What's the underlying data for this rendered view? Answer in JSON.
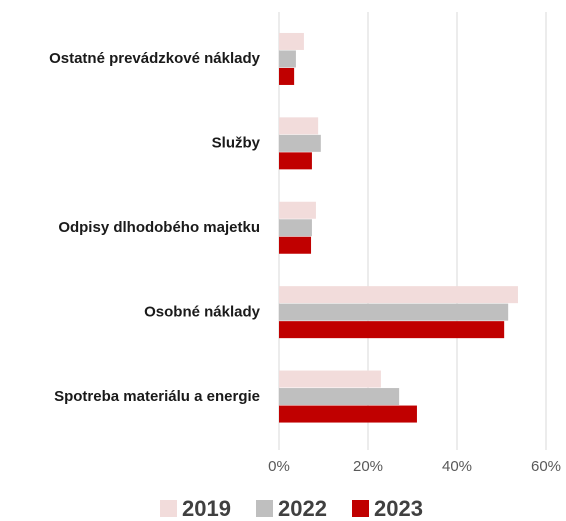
{
  "chart_data": {
    "type": "barh",
    "categories": [
      "Ostatné prevádzkové náklady",
      "Služby",
      "Odpisy dlhodobého majetku",
      "Osobné náklady",
      "Spotreba materiálu a energie"
    ],
    "series": [
      {
        "name": "2019",
        "color": "#f2dcdb",
        "values": [
          5.6,
          8.8,
          8.3,
          53.7,
          22.9
        ]
      },
      {
        "name": "2022",
        "color": "#bfbfbf",
        "values": [
          3.8,
          9.4,
          7.4,
          51.5,
          27.0
        ]
      },
      {
        "name": "2023",
        "color": "#c00000",
        "values": [
          3.4,
          7.4,
          7.2,
          50.6,
          31.0
        ]
      }
    ],
    "xlim": [
      0,
      60
    ],
    "xticks": [
      {
        "value": 0,
        "label": "0%"
      },
      {
        "value": 20,
        "label": "20%"
      },
      {
        "value": 40,
        "label": "40%"
      },
      {
        "value": 60,
        "label": "60%"
      }
    ],
    "grid": true,
    "legend": "bottom"
  }
}
